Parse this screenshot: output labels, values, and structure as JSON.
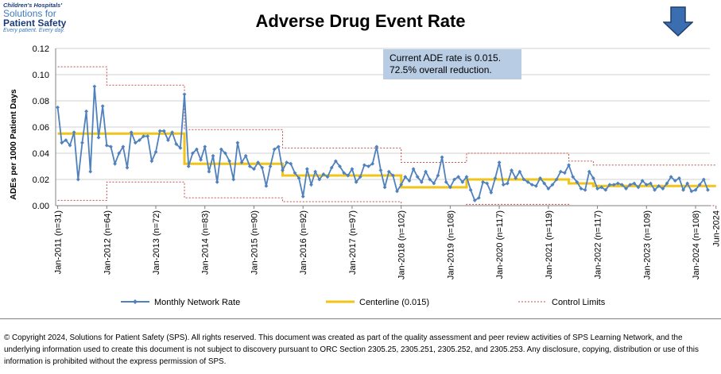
{
  "logo": {
    "line1": "Children's Hospitals'",
    "line2": "Solutions for",
    "line3": "Patient Safety",
    "line4": "Every patient. Every day."
  },
  "direction_icon": "arrow-down-icon",
  "callout": {
    "line1": "Current ADE rate is 0.015.",
    "line2": "72.5% overall reduction."
  },
  "footer": "© Copyright 2024, Solutions for Patient Safety (SPS).  All rights reserved.  This document was created as part of the quality assessment and peer review activities of SPS Learning Network, and the underlying information used to create this document is not subject to discovery pursuant to ORC Section 2305.25, 2305.251, 2305.252, and 2305.253. Any disclosure, copying, distribution or use of this information is prohibited without the express permission of SPS.",
  "chart_data": {
    "type": "line",
    "title": "Adverse Drug Event Rate",
    "ylabel": "ADEs per 1000 Patient Days",
    "xlabel": "",
    "ylim": [
      0,
      0.12
    ],
    "yticks": [
      "0.00",
      "0.02",
      "0.04",
      "0.06",
      "0.08",
      "0.10",
      "0.12"
    ],
    "xtick_labels": [
      "Jan-2011 (n=31)",
      "Jan-2012 (n=64)",
      "Jan-2013 (n=72)",
      "Jan-2014 (n=83)",
      "Jan-2015 (n=90)",
      "Jan-2016 (n=92)",
      "Jan-2017 (n=97)",
      "Jan-2018 (n=102)",
      "Jan-2019 (n=108)",
      "Jan-2020 (n=117)",
      "Jan-2021 (n=119)",
      "Jan-2022 (n=117)",
      "Jan-2023 (n=109)",
      "Jan-2024 (n=108)",
      "Jun-2024"
    ],
    "xtick_index": [
      0,
      12,
      24,
      36,
      48,
      60,
      72,
      84,
      96,
      108,
      120,
      132,
      144,
      156,
      161
    ],
    "grid": true,
    "legend_position": "bottom",
    "colors": {
      "rate": "#4f81bd",
      "centerline": "#f0c419",
      "limits": "#c0504d"
    },
    "series": [
      {
        "name": "Monthly Network Rate",
        "start": "Jan-2011",
        "values": [
          0.075,
          0.048,
          0.05,
          0.046,
          0.056,
          0.02,
          0.048,
          0.072,
          0.026,
          0.091,
          0.052,
          0.076,
          0.046,
          0.045,
          0.032,
          0.04,
          0.045,
          0.029,
          0.056,
          0.048,
          0.05,
          0.053,
          0.053,
          0.034,
          0.041,
          0.057,
          0.057,
          0.05,
          0.056,
          0.047,
          0.044,
          0.085,
          0.03,
          0.04,
          0.043,
          0.035,
          0.045,
          0.026,
          0.038,
          0.018,
          0.043,
          0.04,
          0.034,
          0.02,
          0.048,
          0.033,
          0.038,
          0.03,
          0.028,
          0.033,
          0.029,
          0.015,
          0.03,
          0.043,
          0.045,
          0.027,
          0.033,
          0.032,
          0.025,
          0.021,
          0.007,
          0.028,
          0.016,
          0.026,
          0.02,
          0.024,
          0.022,
          0.029,
          0.034,
          0.03,
          0.025,
          0.023,
          0.028,
          0.018,
          0.022,
          0.031,
          0.03,
          0.032,
          0.045,
          0.027,
          0.014,
          0.026,
          0.023,
          0.011,
          0.016,
          0.022,
          0.019,
          0.028,
          0.022,
          0.018,
          0.026,
          0.02,
          0.017,
          0.023,
          0.037,
          0.018,
          0.014,
          0.02,
          0.022,
          0.018,
          0.022,
          0.012,
          0.004,
          0.006,
          0.018,
          0.017,
          0.01,
          0.021,
          0.033,
          0.016,
          0.017,
          0.027,
          0.021,
          0.026,
          0.02,
          0.018,
          0.016,
          0.015,
          0.021,
          0.017,
          0.013,
          0.016,
          0.02,
          0.026,
          0.025,
          0.031,
          0.022,
          0.018,
          0.013,
          0.012,
          0.026,
          0.021,
          0.013,
          0.014,
          0.012,
          0.016,
          0.016,
          0.017,
          0.016,
          0.013,
          0.016,
          0.017,
          0.014,
          0.019,
          0.016,
          0.017,
          0.012,
          0.015,
          0.013,
          0.017,
          0.022,
          0.019,
          0.021,
          0.012,
          0.017,
          0.011,
          0.012,
          0.016,
          0.02,
          0.012
        ]
      },
      {
        "name": "Centerline (0.015)",
        "segments": [
          {
            "from": 0,
            "to": 31,
            "value": 0.055
          },
          {
            "from": 31,
            "to": 55,
            "value": 0.032
          },
          {
            "from": 55,
            "to": 84,
            "value": 0.023
          },
          {
            "from": 84,
            "to": 100,
            "value": 0.014
          },
          {
            "from": 100,
            "to": 125,
            "value": 0.02
          },
          {
            "from": 125,
            "to": 131,
            "value": 0.017
          },
          {
            "from": 131,
            "to": 161,
            "value": 0.015
          }
        ]
      },
      {
        "name": "Control Limits",
        "upper": [
          {
            "from": 0,
            "to": 12,
            "value": 0.106
          },
          {
            "from": 12,
            "to": 31,
            "value": 0.092
          },
          {
            "from": 31,
            "to": 55,
            "value": 0.058
          },
          {
            "from": 55,
            "to": 84,
            "value": 0.044
          },
          {
            "from": 84,
            "to": 100,
            "value": 0.033
          },
          {
            "from": 100,
            "to": 125,
            "value": 0.04
          },
          {
            "from": 125,
            "to": 131,
            "value": 0.034
          },
          {
            "from": 131,
            "to": 161,
            "value": 0.031
          }
        ],
        "lower": [
          {
            "from": 0,
            "to": 12,
            "value": 0.004
          },
          {
            "from": 12,
            "to": 31,
            "value": 0.018
          },
          {
            "from": 31,
            "to": 55,
            "value": 0.006
          },
          {
            "from": 55,
            "to": 84,
            "value": 0.003
          },
          {
            "from": 84,
            "to": 100,
            "value": 0.0
          },
          {
            "from": 100,
            "to": 125,
            "value": 0.001
          },
          {
            "from": 125,
            "to": 131,
            "value": 0.0
          },
          {
            "from": 131,
            "to": 161,
            "value": 0.0
          }
        ]
      }
    ]
  }
}
